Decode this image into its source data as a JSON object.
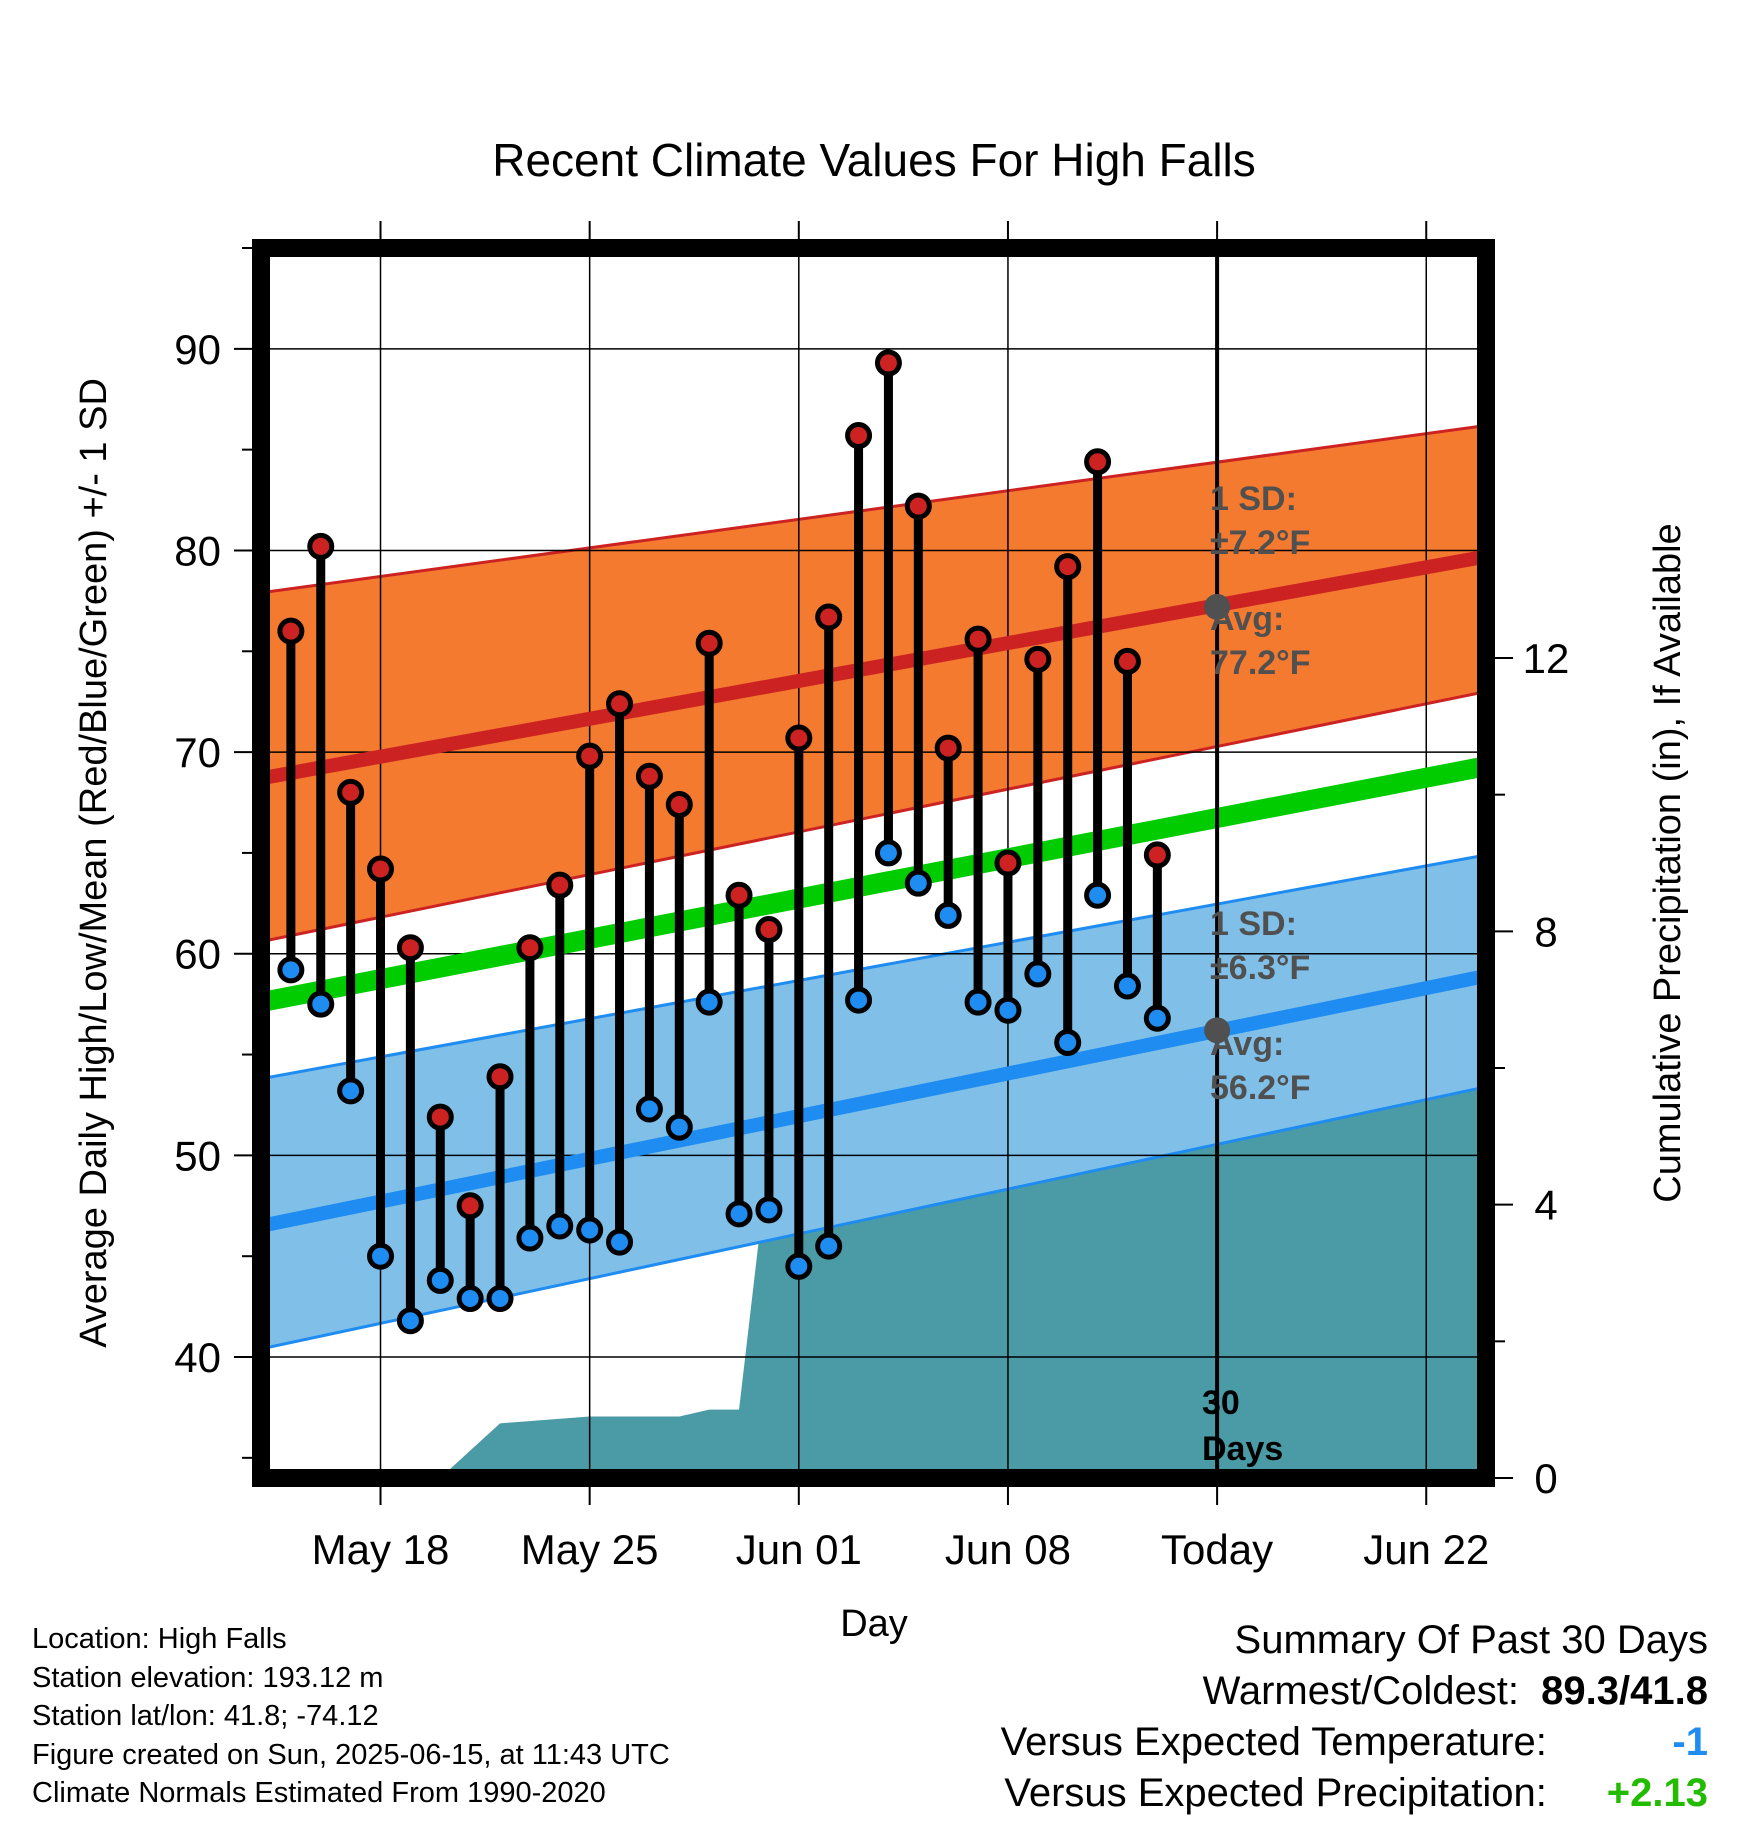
{
  "chart_data": {
    "type": "line",
    "title": "Recent Climate Values For High Falls",
    "xlabel": "Day",
    "ylabel": "Average Daily High/Low/Mean (Red/Blue/Green) +/- 1 SD",
    "y2label": "Cumulative Precipitation (in), If Available",
    "x_tick_labels": [
      "May 18",
      "May 25",
      "Jun 01",
      "Jun 08",
      "Today",
      "Jun 22"
    ],
    "x_range": [
      "2025-05-14",
      "2025-06-24"
    ],
    "ylim": [
      34,
      95
    ],
    "y_ticks": [
      40,
      50,
      60,
      70,
      80,
      90
    ],
    "y2lim": [
      0,
      18
    ],
    "y2_ticks": [
      0,
      4,
      8,
      12
    ],
    "grid": true,
    "today": "2025-06-15",
    "today_label": "30 Days",
    "colors": {
      "high": "#cc2222",
      "high_band": "#f47a30",
      "low": "#1e8cf0",
      "low_band": "#80c0e8",
      "mean": "#00cc00",
      "precip": "#4a9ba5",
      "annotation": "#505050"
    },
    "daily": {
      "dates": [
        "2025-05-15",
        "2025-05-16",
        "2025-05-17",
        "2025-05-18",
        "2025-05-19",
        "2025-05-20",
        "2025-05-21",
        "2025-05-22",
        "2025-05-23",
        "2025-05-24",
        "2025-05-25",
        "2025-05-26",
        "2025-05-27",
        "2025-05-28",
        "2025-05-29",
        "2025-05-30",
        "2025-05-31",
        "2025-06-01",
        "2025-06-02",
        "2025-06-03",
        "2025-06-04",
        "2025-06-05",
        "2025-06-06",
        "2025-06-07",
        "2025-06-08",
        "2025-06-09",
        "2025-06-10",
        "2025-06-11",
        "2025-06-12",
        "2025-06-13",
        "2025-06-14"
      ],
      "highs": [
        76.0,
        80.2,
        68.0,
        64.2,
        60.3,
        51.9,
        47.5,
        53.9,
        60.3,
        63.4,
        69.8,
        72.4,
        68.8,
        67.4,
        75.4,
        62.9,
        61.2,
        70.7,
        76.7,
        85.7,
        89.3,
        82.2,
        70.2,
        75.6,
        64.5,
        74.6,
        79.2,
        84.4,
        74.5,
        64.9,
        null
      ],
      "lows": [
        59.2,
        57.5,
        53.2,
        45.0,
        41.8,
        43.8,
        42.9,
        42.9,
        45.9,
        46.5,
        46.3,
        45.7,
        52.3,
        51.4,
        57.6,
        47.1,
        47.3,
        44.5,
        45.5,
        57.7,
        65.0,
        63.5,
        61.9,
        57.6,
        57.2,
        59.0,
        55.6,
        62.9,
        58.4,
        56.8,
        null
      ]
    },
    "normals": {
      "dates": [
        "2025-05-14",
        "2025-06-24"
      ],
      "high_avg": [
        68.7,
        79.7
      ],
      "high_sd_upper": [
        77.9,
        86.2
      ],
      "high_sd_lower": [
        60.6,
        73.0
      ],
      "low_avg": [
        46.5,
        58.9
      ],
      "low_sd_upper": [
        53.8,
        64.9
      ],
      "low_sd_lower": [
        40.4,
        53.4
      ],
      "mean_avg": [
        57.6,
        69.3
      ]
    },
    "precipitation": {
      "dates": [
        "2025-05-20",
        "2025-05-21",
        "2025-05-22",
        "2025-05-25",
        "2025-05-28",
        "2025-05-29",
        "2025-05-30",
        "2025-05-31",
        "2025-06-04",
        "2025-06-05",
        "2025-06-06",
        "2025-06-07",
        "2025-06-08",
        "2025-06-09",
        "2025-06-10",
        "2025-06-11",
        "2025-06-12",
        "2025-06-13",
        "2025-06-14",
        "2025-06-24"
      ],
      "cumulative": [
        0.0,
        0.4,
        0.8,
        0.9,
        0.9,
        1.0,
        1.0,
        4.75,
        4.75,
        4.75,
        5.4,
        5.5,
        5.8,
        6.0,
        6.05,
        6.05,
        6.1,
        6.15,
        6.15,
        6.15
      ]
    },
    "annotations": {
      "high_sd_label": "1 SD:",
      "high_sd_value": "±7.2°F",
      "high_avg_label": "Avg:",
      "high_avg_value": "77.2°F",
      "high_avg_today": 77.2,
      "low_sd_label": "1 SD:",
      "low_sd_value": "±6.3°F",
      "low_avg_label": "Avg:",
      "low_avg_value": "56.2°F",
      "low_avg_today": 56.2
    }
  },
  "footer": {
    "location": "Location: High Falls",
    "elevation": "Station elevation: 193.12 m",
    "latlon": "Station lat/lon: 41.8; -74.12",
    "created": "Figure created on Sun, 2025-06-15, at 11:43 UTC",
    "normals": "Climate Normals Estimated From 1990-2020"
  },
  "summary": {
    "heading": "Summary Of Past 30 Days",
    "warm_cold_label": "Warmest/Coldest:",
    "warm_cold_value": "89.3/41.8",
    "temp_label": "Versus Expected Temperature:",
    "temp_value": "-1",
    "temp_color": "#1e8cf0",
    "precip_label": "Versus Expected Precipitation:",
    "precip_value": "+2.13",
    "precip_color": "#22bb00"
  }
}
